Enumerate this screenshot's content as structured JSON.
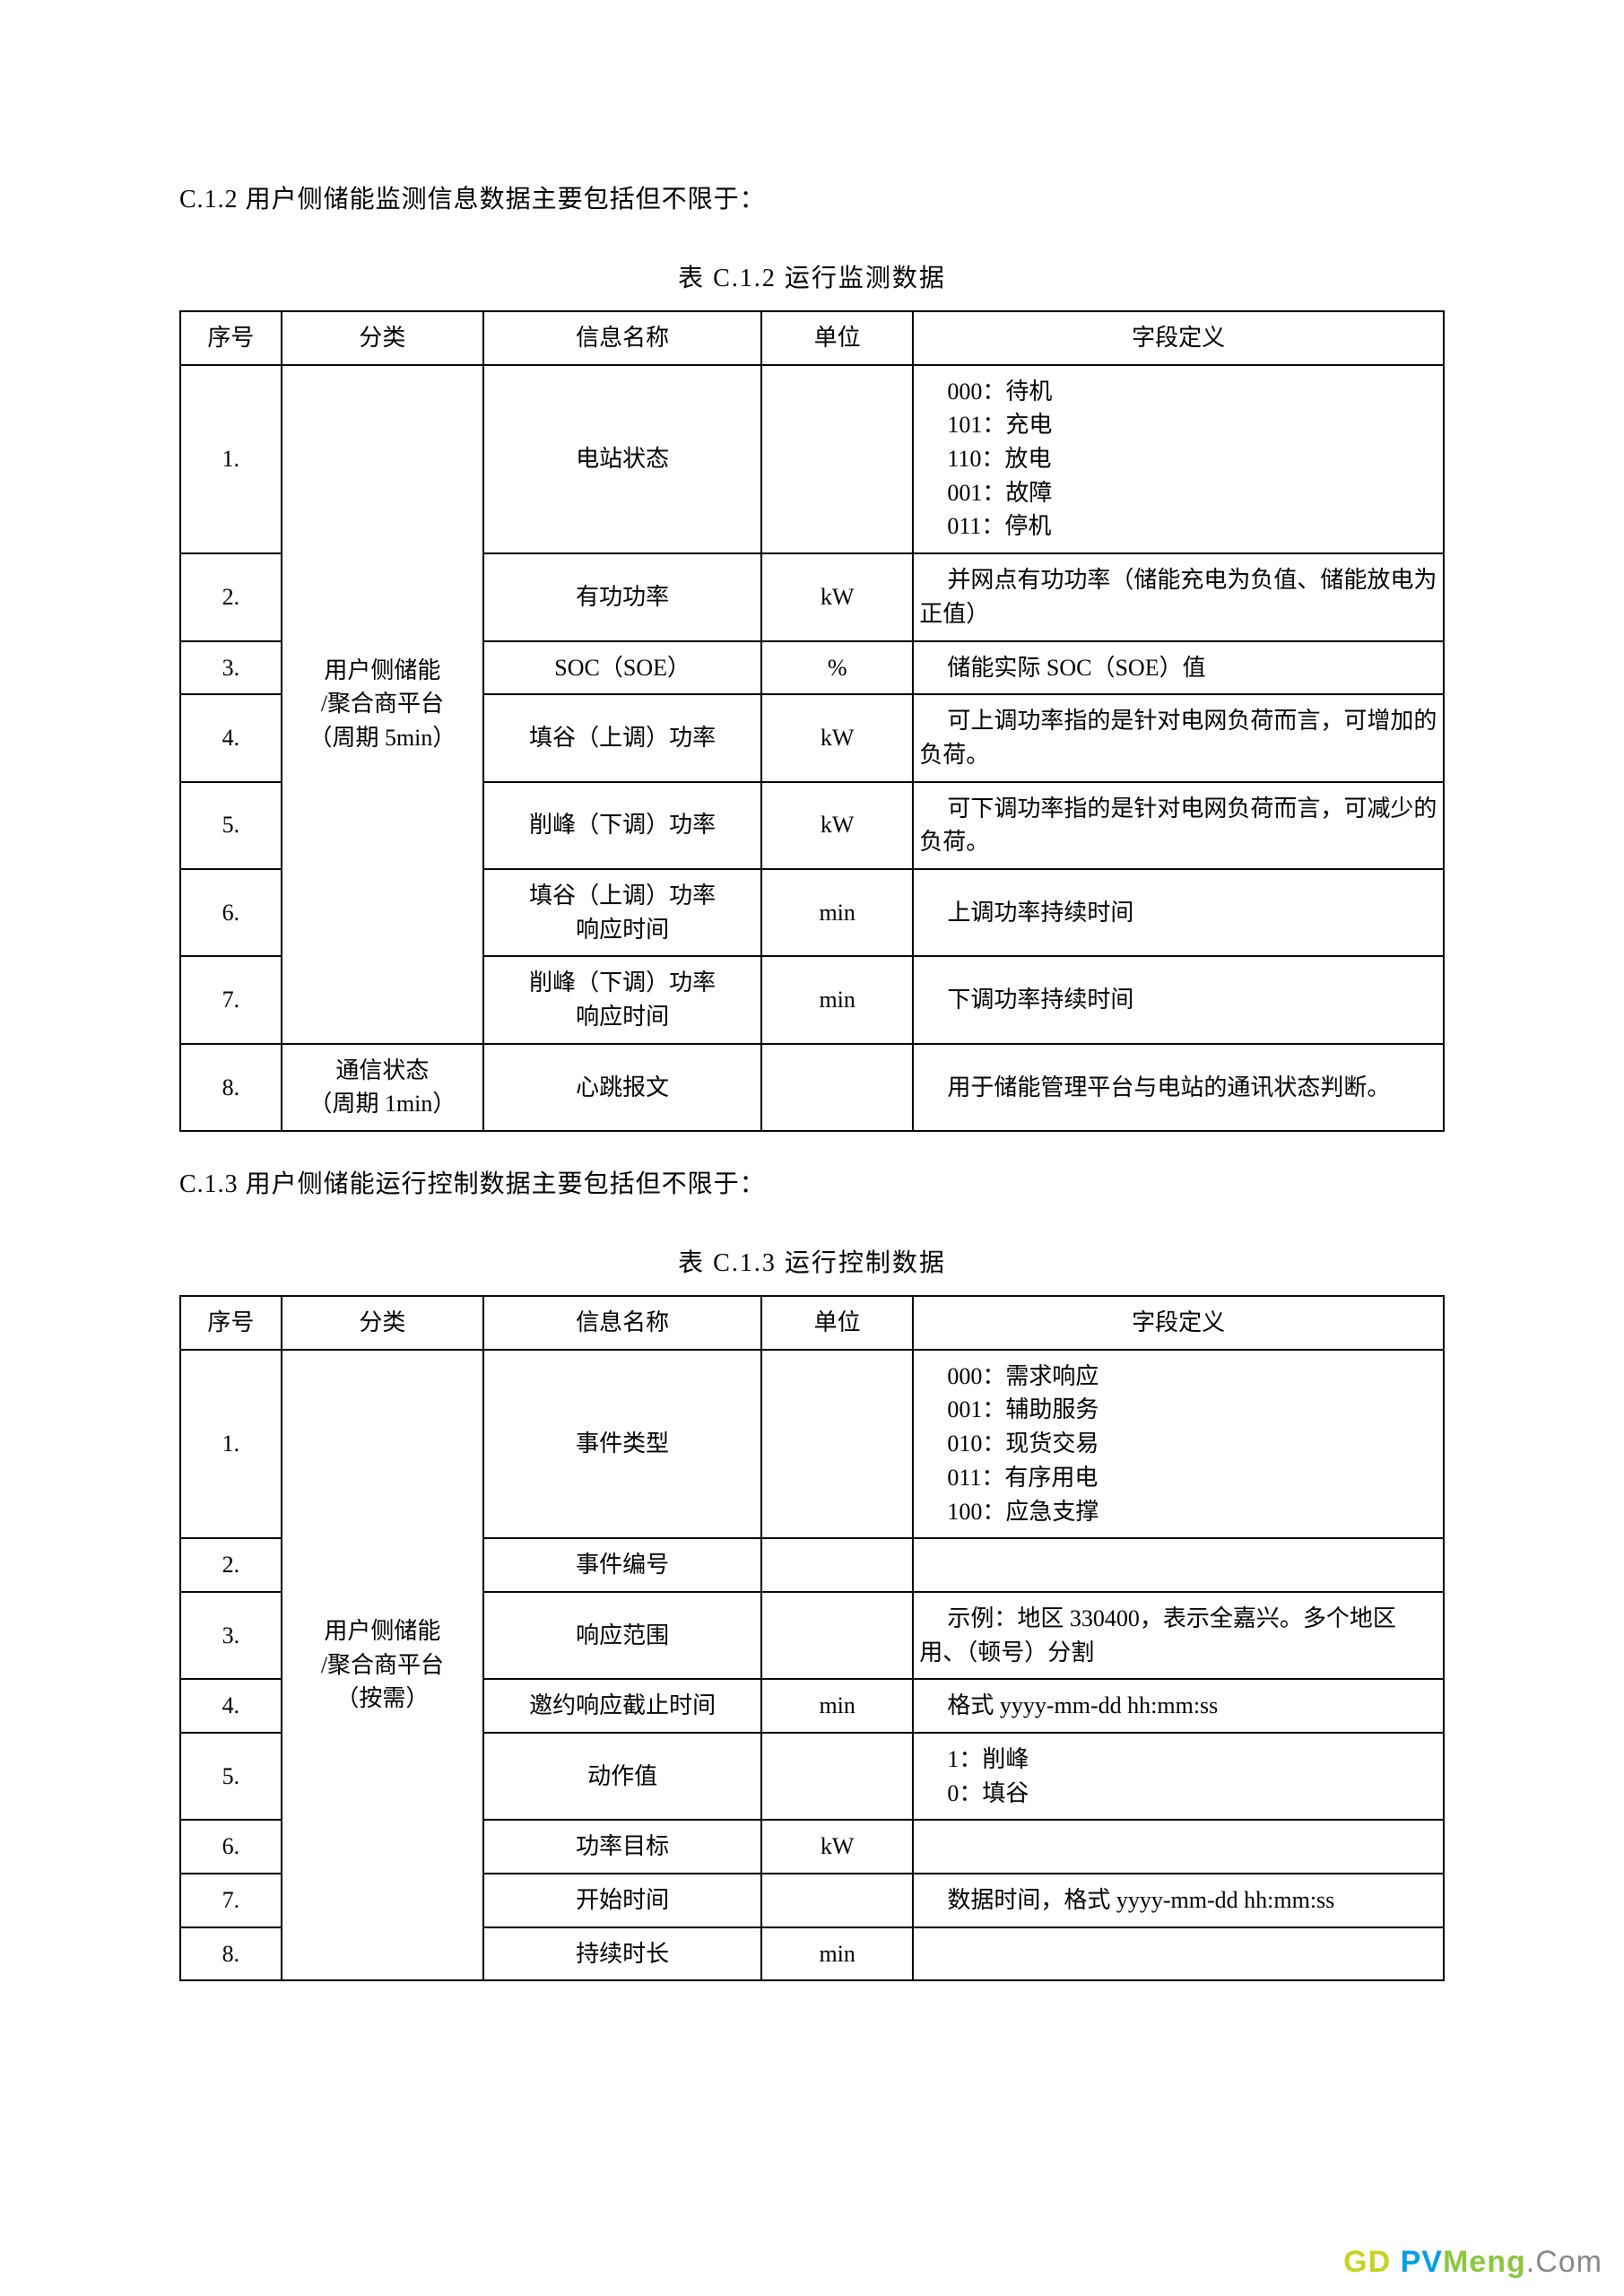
{
  "colors": {
    "text": "#000000",
    "background": "#ffffff",
    "border": "#000000",
    "wm_gd": "#c6d420",
    "wm_pv": "#00a0e9",
    "wm_meng": "#8ec63f",
    "wm_com": "#888888"
  },
  "section1": {
    "heading": "C.1.2 用户侧储能监测信息数据主要包括但不限于：",
    "caption": "表 C.1.2 运行监测数据",
    "columns": [
      "序号",
      "分类",
      "信息名称",
      "单位",
      "字段定义"
    ],
    "rows": [
      {
        "idx": "1.",
        "cat": "用户侧储能\n/聚合商平台\n（周期 5min）",
        "catRowspan": 7,
        "name": "电站状态",
        "unit": "",
        "def": "000：待机\n101：充电\n110：放电\n001：故障\n011：停机",
        "defMode": "block"
      },
      {
        "idx": "2.",
        "name": "有功功率",
        "unit": "kW",
        "def": "并网点有功功率（储能充电为负值、储能放电为正值）",
        "defMode": "indent"
      },
      {
        "idx": "3.",
        "name": "SOC（SOE）",
        "unit": "%",
        "def": "储能实际 SOC（SOE）值",
        "defMode": "indent"
      },
      {
        "idx": "4.",
        "name": "填谷（上调）功率",
        "unit": "kW",
        "def": "可上调功率指的是针对电网负荷而言，可增加的负荷。",
        "defMode": "indent"
      },
      {
        "idx": "5.",
        "name": "削峰（下调）功率",
        "unit": "kW",
        "def": "可下调功率指的是针对电网负荷而言，可减少的负荷。",
        "defMode": "indent"
      },
      {
        "idx": "6.",
        "name": "填谷（上调）功率\n响应时间",
        "unit": "min",
        "def": "上调功率持续时间",
        "defMode": "indent"
      },
      {
        "idx": "7.",
        "name": "削峰（下调）功率\n响应时间",
        "unit": "min",
        "def": "下调功率持续时间",
        "defMode": "indent"
      },
      {
        "idx": "8.",
        "cat": "通信状态\n（周期 1min）",
        "catRowspan": 1,
        "name": "心跳报文",
        "unit": "",
        "def": "用于储能管理平台与电站的通讯状态判断。",
        "defMode": "indent"
      }
    ]
  },
  "section2": {
    "heading": "C.1.3 用户侧储能运行控制数据主要包括但不限于：",
    "caption": "表  C.1.3 运行控制数据",
    "columns": [
      "序号",
      "分类",
      "信息名称",
      "单位",
      "字段定义"
    ],
    "rows": [
      {
        "idx": "1.",
        "cat": "用户侧储能\n/聚合商平台\n（按需）",
        "catRowspan": 8,
        "name": "事件类型",
        "unit": "",
        "def": "000：需求响应\n001：辅助服务\n010：现货交易\n011：有序用电\n100：应急支撑",
        "defMode": "block"
      },
      {
        "idx": "2.",
        "name": "事件编号",
        "unit": "",
        "def": "",
        "defMode": "indent"
      },
      {
        "idx": "3.",
        "name": "响应范围",
        "unit": "",
        "def": "示例：地区 330400，表示全嘉兴。多个地区用、（顿号）分割",
        "defMode": "indent"
      },
      {
        "idx": "4.",
        "name": "邀约响应截止时间",
        "unit": "min",
        "def": "格式 yyyy-mm-dd hh:mm:ss",
        "defMode": "indent"
      },
      {
        "idx": "5.",
        "name": "动作值",
        "unit": "",
        "def": "1：削峰\n0：填谷",
        "defMode": "block"
      },
      {
        "idx": "6.",
        "name": "功率目标",
        "unit": "kW",
        "def": "",
        "defMode": "indent"
      },
      {
        "idx": "7.",
        "name": "开始时间",
        "unit": "",
        "def": "数据时间，格式 yyyy-mm-dd hh:mm:ss",
        "defMode": "indent"
      },
      {
        "idx": "8.",
        "name": "持续时长",
        "unit": "min",
        "def": "",
        "defMode": "indent"
      }
    ]
  },
  "watermark": {
    "g": "G",
    "d": "D ",
    "p": "P",
    "v": "V",
    "meng": "Meng",
    "com": ".Com"
  }
}
